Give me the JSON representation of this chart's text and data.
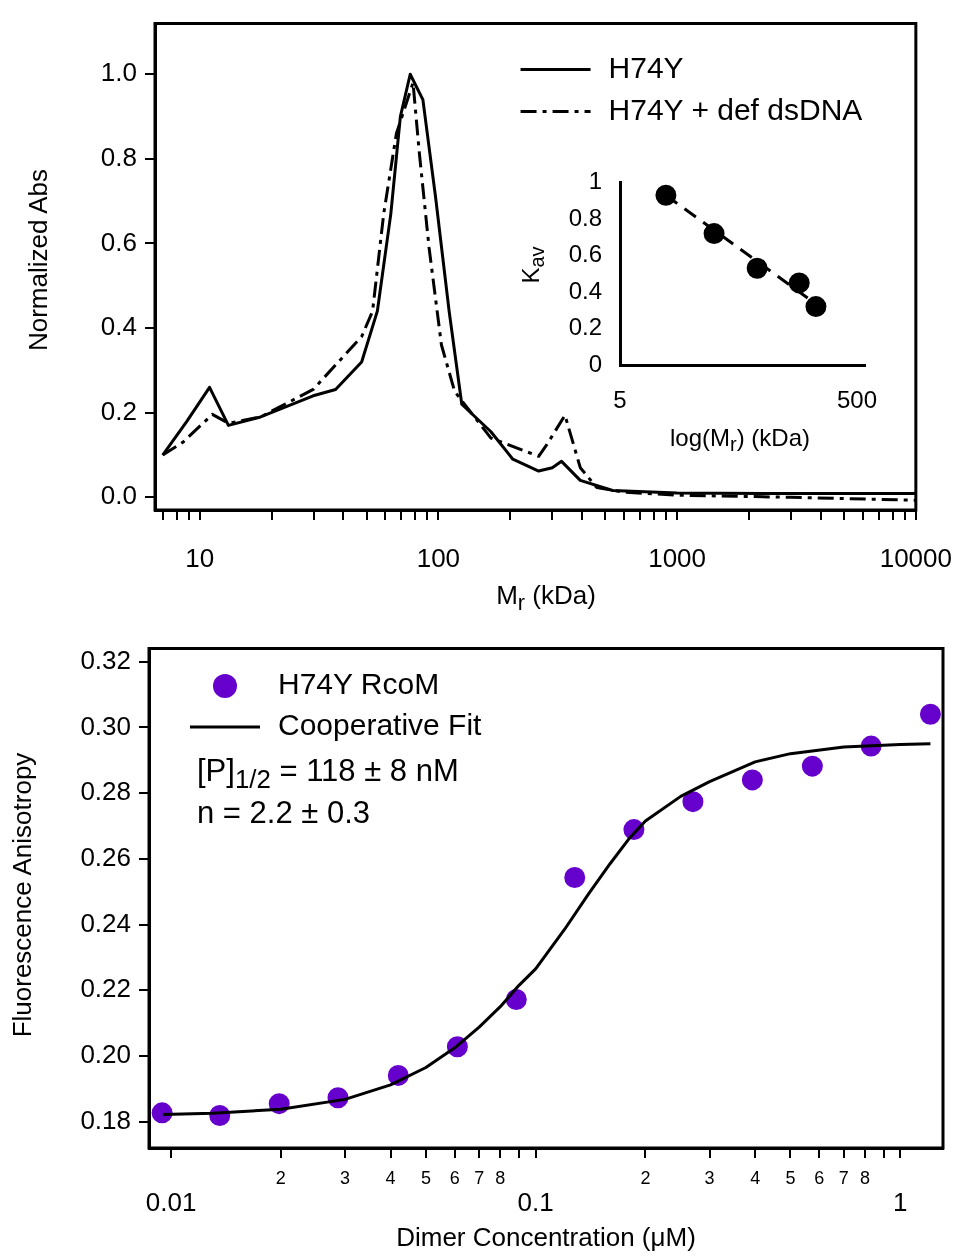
{
  "chart_data": [
    {
      "type": "line",
      "xlabel": "M$_{r}$ (kDa)",
      "ylabel": "Normalized Abs",
      "log": "x",
      "legend": "top right",
      "xlim": [
        6.5,
        10000
      ],
      "ylim": [
        -0.03,
        1.12
      ],
      "xticks": [
        {
          "value": 7,
          "label": null
        },
        {
          "value": 8,
          "label": null
        },
        {
          "value": 9,
          "label": null
        },
        10,
        {
          "value": 20,
          "label": null
        },
        {
          "value": 30,
          "label": null
        },
        {
          "value": 40,
          "label": null
        },
        {
          "value": 50,
          "label": null
        },
        {
          "value": 60,
          "label": null
        },
        {
          "value": 70,
          "label": null
        },
        {
          "value": 80,
          "label": null
        },
        {
          "value": 90,
          "label": null
        },
        100,
        {
          "value": 200,
          "label": null
        },
        {
          "value": 300,
          "label": null
        },
        {
          "value": 400,
          "label": null
        },
        {
          "value": 500,
          "label": null
        },
        {
          "value": 600,
          "label": null
        },
        {
          "value": 700,
          "label": null
        },
        {
          "value": 800,
          "label": null
        },
        {
          "value": 900,
          "label": null
        },
        1000,
        {
          "value": 2000,
          "label": null
        },
        {
          "value": 3000,
          "label": null
        },
        {
          "value": 4000,
          "label": null
        },
        {
          "value": 5000,
          "label": null
        },
        {
          "value": 6000,
          "label": null
        },
        {
          "value": 7000,
          "label": null
        },
        {
          "value": 8000,
          "label": null
        },
        {
          "value": 9000,
          "label": null
        },
        10000
      ],
      "yticks": [
        {
          "value": 0,
          "label": "0.0"
        },
        0.2,
        0.4,
        0.6,
        0.8,
        {
          "value": 1,
          "label": "1.0"
        }
      ],
      "series": [
        {
          "name": "H74Y",
          "color": "#000000",
          "marker": "none",
          "line_style": "solid",
          "x": [
            7,
            8.85,
            11,
            13.2,
            18,
            29.9,
            37.1,
            47.7,
            55.5,
            63.2,
            69.3,
            76.2,
            86.1,
            97.3,
            110.9,
            125.3,
            166,
            205,
            263,
            300,
            328,
            393,
            537,
            1000,
            3000,
            10000
          ],
          "values": [
            0.1,
            0.18,
            0.26,
            0.17,
            0.19,
            0.24,
            0.255,
            0.32,
            0.44,
            0.67,
            0.9,
            1.0,
            0.94,
            0.71,
            0.44,
            0.22,
            0.155,
            0.09,
            0.062,
            0.07,
            0.085,
            0.04,
            0.016,
            0.01,
            0.009,
            0.009
          ]
        },
        {
          "name": "H74Y + def dsDNA",
          "color": "#000000",
          "marker": "none",
          "line_style": "dashdot",
          "x": [
            7,
            8.5,
            11.3,
            13.2,
            18,
            29.9,
            47.7,
            53,
            59,
            66.7,
            78.3,
            83,
            91.4,
            103,
            117,
            166,
            263,
            285,
            339,
            393,
            461,
            600,
            1000,
            3000,
            10000
          ],
          "values": [
            0.1,
            0.13,
            0.196,
            0.175,
            0.19,
            0.255,
            0.38,
            0.44,
            0.67,
            0.86,
            0.98,
            0.82,
            0.59,
            0.36,
            0.25,
            0.14,
            0.097,
            0.125,
            0.194,
            0.07,
            0.023,
            0.012,
            0.005,
            0.0,
            -0.007
          ]
        }
      ]
    },
    {
      "type": "scatter",
      "xlabel": "log(M$_{r}$) (kDa)",
      "ylabel": "K$_{av}$",
      "log": "x",
      "xlim": [
        5,
        580
      ],
      "ylim": [
        0,
        1
      ],
      "xticks": [
        5,
        500
      ],
      "yticks": [
        0,
        0.2,
        0.4,
        0.6,
        0.8,
        1
      ],
      "series": [
        {
          "color": "#000000",
          "marker": "circle",
          "x": [
            12.2,
            31.1,
            71.8,
            162.6,
            225
          ],
          "values": [
            0.93,
            0.72,
            0.53,
            0.45,
            0.32
          ]
        },
        {
          "type": "line",
          "color": "#000000",
          "marker": "none",
          "line_style": "dashed",
          "x": [
            12.2,
            230
          ],
          "values": [
            0.93,
            0.33
          ]
        }
      ]
    },
    {
      "type": "scatter",
      "xlabel": "Dimer Concentration (μM)",
      "ylabel": "Fluorescence Anisotropy",
      "log": "x",
      "legend": "top left",
      "annotations": [
        "[P]$_{1/2}$ = 118 ± 8 nM",
        "n = 2.2 ± 0.3",
        "2",
        "3",
        "4",
        "5",
        "6",
        "7",
        "8",
        "2",
        "3",
        "4",
        "5",
        "6",
        "7",
        "8"
      ],
      "xlim": [
        0.0087,
        1.31
      ],
      "ylim": [
        0.172,
        0.324
      ],
      "xticks": [
        0.01,
        {
          "value": 0.02,
          "label": null
        },
        {
          "value": 0.03,
          "label": null
        },
        {
          "value": 0.04,
          "label": null
        },
        {
          "value": 0.05,
          "label": null
        },
        {
          "value": 0.06,
          "label": null
        },
        {
          "value": 0.07,
          "label": null
        },
        {
          "value": 0.08,
          "label": null
        },
        {
          "value": 0.09,
          "label": null
        },
        0.1,
        {
          "value": 0.2,
          "label": null
        },
        {
          "value": 0.3,
          "label": null
        },
        {
          "value": 0.4,
          "label": null
        },
        {
          "value": 0.5,
          "label": null
        },
        {
          "value": 0.6,
          "label": null
        },
        {
          "value": 0.7,
          "label": null
        },
        {
          "value": 0.8,
          "label": null
        },
        {
          "value": 0.9,
          "label": null
        },
        1
      ],
      "yticks": [
        0.18,
        {
          "value": 0.2,
          "label": "0.20"
        },
        0.22,
        0.24,
        0.26,
        0.28,
        {
          "value": 0.3,
          "label": "0.30"
        },
        0.32
      ],
      "series": [
        {
          "name": "H74Y RcoM",
          "color": "#6600cc",
          "marker": "circle",
          "x": [
            0.00945,
            0.0136,
            0.0198,
            0.0287,
            0.042,
            0.061,
            0.0885,
            0.128,
            0.186,
            0.27,
            0.393,
            0.574,
            0.832,
            1.21
          ],
          "values": [
            0.1827,
            0.1819,
            0.1855,
            0.1873,
            0.1941,
            0.2028,
            0.2172,
            0.2543,
            0.2689,
            0.2774,
            0.284,
            0.2882,
            0.2943,
            0.304
          ]
        },
        {
          "name": "Cooperative Fit",
          "type": "line",
          "color": "#000000",
          "marker": "none",
          "line_style": "solid",
          "x": [
            0.0095,
            0.013,
            0.02,
            0.03,
            0.04,
            0.05,
            0.06,
            0.07,
            0.08,
            0.09,
            0.1,
            0.12,
            0.14,
            0.16,
            0.18,
            0.2,
            0.25,
            0.3,
            0.4,
            0.5,
            0.7,
            1.0,
            1.21
          ],
          "values": [
            0.1822,
            0.1826,
            0.1838,
            0.1868,
            0.1912,
            0.1965,
            0.2025,
            0.2088,
            0.215,
            0.2215,
            0.2265,
            0.2385,
            0.2495,
            0.2585,
            0.266,
            0.2715,
            0.279,
            0.2835,
            0.2895,
            0.292,
            0.294,
            0.2948,
            0.295
          ]
        }
      ]
    }
  ]
}
